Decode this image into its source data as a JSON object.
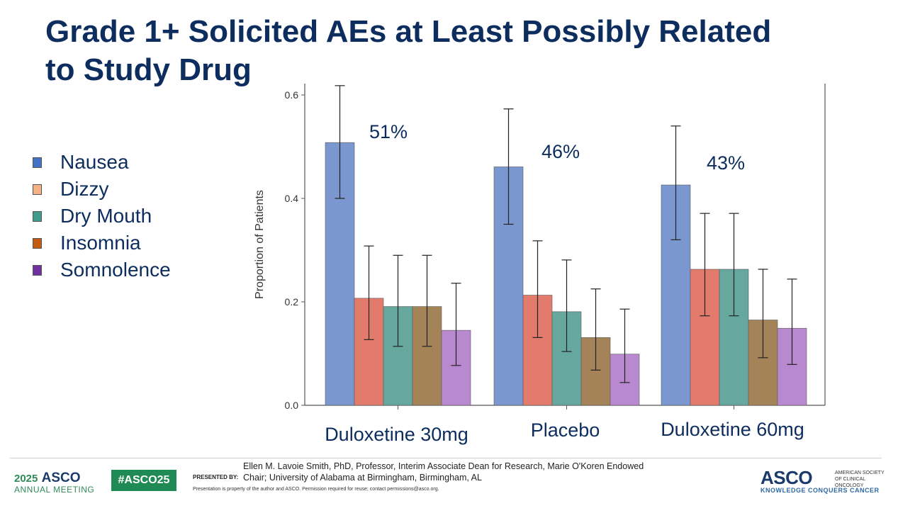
{
  "slide": {
    "title_line1": "Grade 1+ Solicited AEs at Least Possibly Related",
    "title_line2": "to Study Drug"
  },
  "legend": [
    {
      "label": "Nausea",
      "color": "#4472c4"
    },
    {
      "label": "Dizzy",
      "color": "#f4b183"
    },
    {
      "label": "Dry Mouth",
      "color": "#3f9b8a"
    },
    {
      "label": "Insomnia",
      "color": "#c55a11"
    },
    {
      "label": "Somnolence",
      "color": "#7030a0"
    }
  ],
  "chart_data": {
    "type": "bar",
    "ylabel": "Proportion of Patients",
    "xlabel": "",
    "ylim": [
      0,
      0.62
    ],
    "yticks": [
      "0.0",
      "0.2",
      "0.4",
      "0.6"
    ],
    "categories": [
      "Duloxetine 30mg",
      "Placebo",
      "Duloxetine 60mg"
    ],
    "group_annotations": [
      "51%",
      "46%",
      "43%"
    ],
    "series": [
      {
        "name": "Nausea",
        "color": "#7b97d0",
        "values": [
          0.508,
          0.461,
          0.426
        ],
        "err_low": [
          0.4,
          0.35,
          0.32
        ],
        "err_high": [
          0.618,
          0.573,
          0.54
        ]
      },
      {
        "name": "Dizzy",
        "color": "#e27b6b",
        "values": [
          0.207,
          0.213,
          0.263
        ],
        "err_low": [
          0.127,
          0.131,
          0.173
        ],
        "err_high": [
          0.308,
          0.318,
          0.371
        ]
      },
      {
        "name": "Dry Mouth",
        "color": "#66a89e",
        "values": [
          0.191,
          0.181,
          0.263
        ],
        "err_low": [
          0.114,
          0.104,
          0.173
        ],
        "err_high": [
          0.29,
          0.281,
          0.371
        ]
      },
      {
        "name": "Insomnia",
        "color": "#a58359",
        "values": [
          0.191,
          0.131,
          0.165
        ],
        "err_low": [
          0.114,
          0.068,
          0.092
        ],
        "err_high": [
          0.29,
          0.225,
          0.263
        ]
      },
      {
        "name": "Somnolence",
        "color": "#b889cf",
        "values": [
          0.145,
          0.099,
          0.149
        ],
        "err_low": [
          0.077,
          0.044,
          0.079
        ],
        "err_high": [
          0.236,
          0.186,
          0.244
        ]
      }
    ]
  },
  "footer": {
    "meeting_year": "2025",
    "meeting_brand": "ASCO",
    "meeting_sub": "ANNUAL MEETING",
    "hashtag": "#ASCO25",
    "presented_by": "PRESENTED BY:",
    "presenter_line1": "Ellen M. Lavoie Smith, PhD, Professor, Interim Associate Dean for Research, Marie O'Koren Endowed",
    "presenter_line2": "Chair; University of Alabama at Birmingham, Birmingham, AL",
    "disclaimer": "Presentation is property of the author and ASCO. Permission required for reuse; contact permissions@asco.org.",
    "right_brand": "ASCO",
    "right_sub": "KNOWLEDGE CONQUERS CANCER",
    "right_org": "AMERICAN SOCIETY OF CLINICAL ONCOLOGY"
  }
}
